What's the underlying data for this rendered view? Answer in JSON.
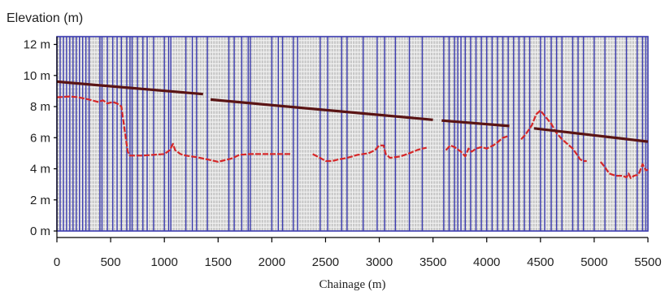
{
  "chart_data": {
    "type": "line",
    "title": "",
    "ylabel": "Elevation (m)",
    "xlabel": "Chainage (m)",
    "xlim": [
      0,
      5500
    ],
    "ylim": [
      0,
      12.5
    ],
    "x_ticks": [
      0,
      500,
      1000,
      1500,
      2000,
      2500,
      3000,
      3500,
      4000,
      4500,
      5000,
      5500
    ],
    "x_tick_labels": [
      "0",
      "500",
      "1000",
      "1500",
      "2000",
      "2500",
      "3000",
      "3500",
      "4000",
      "4500",
      "5000",
      "5500"
    ],
    "y_ticks": [
      0,
      2,
      4,
      6,
      8,
      10,
      12
    ],
    "y_tick_labels": [
      "0 m",
      "2 m",
      "4 m",
      "6 m",
      "8 m",
      "10 m",
      "12 m"
    ],
    "grid": true,
    "colors": {
      "plot_background": "#c8c8c8",
      "minor_grid": "#f2f2f2",
      "major_grid": "#3b3bb0",
      "series_red": "#d62728",
      "series_brown": "#5a1414",
      "axis": "#000000"
    },
    "vertical_grid_x": [
      30,
      60,
      90,
      120,
      150,
      180,
      210,
      240,
      270,
      300,
      400,
      420,
      470,
      520,
      560,
      600,
      650,
      680,
      700,
      750,
      800,
      840,
      900,
      1000,
      1040,
      1060,
      1200,
      1260,
      1300,
      1400,
      1600,
      1650,
      1720,
      1780,
      1800,
      2000,
      2060,
      2100,
      2200,
      2240,
      2450,
      2520,
      2650,
      2700,
      2850,
      2980,
      3050,
      3150,
      3280,
      3400,
      3600,
      3650,
      3700,
      3730,
      3760,
      3800,
      3850,
      3900,
      3950,
      4000,
      4050,
      4100,
      4150,
      4200,
      4250,
      4300,
      4350,
      4400,
      4500,
      4540,
      4600,
      4650,
      4700,
      4800,
      4850,
      4900,
      5000,
      5100,
      5200,
      5300,
      5400,
      5450,
      5480
    ],
    "series": [
      {
        "kind": "ground",
        "color": "#d62728",
        "segments": [
          [
            [
              0,
              8.6
            ],
            [
              120,
              8.65
            ],
            [
              200,
              8.6
            ],
            [
              300,
              8.45
            ],
            [
              380,
              8.3
            ],
            [
              430,
              8.4
            ],
            [
              470,
              8.2
            ],
            [
              520,
              8.3
            ],
            [
              560,
              8.2
            ],
            [
              600,
              8.0
            ],
            [
              620,
              7.0
            ],
            [
              640,
              6.0
            ],
            [
              660,
              5.1
            ],
            [
              680,
              4.85
            ],
            [
              800,
              4.85
            ],
            [
              900,
              4.9
            ],
            [
              1000,
              4.95
            ],
            [
              1050,
              5.2
            ],
            [
              1080,
              5.6
            ],
            [
              1100,
              5.2
            ],
            [
              1150,
              4.95
            ],
            [
              1200,
              4.85
            ],
            [
              1300,
              4.75
            ],
            [
              1400,
              4.6
            ],
            [
              1500,
              4.45
            ],
            [
              1560,
              4.55
            ],
            [
              1620,
              4.65
            ],
            [
              1700,
              4.9
            ],
            [
              1800,
              4.95
            ],
            [
              1900,
              4.95
            ],
            [
              2000,
              4.95
            ],
            [
              2100,
              4.95
            ],
            [
              2180,
              4.95
            ]
          ],
          [
            [
              2380,
              4.95
            ],
            [
              2450,
              4.7
            ],
            [
              2500,
              4.5
            ],
            [
              2560,
              4.5
            ],
            [
              2620,
              4.6
            ],
            [
              2700,
              4.7
            ],
            [
              2800,
              4.9
            ],
            [
              2900,
              5.0
            ],
            [
              2960,
              5.2
            ],
            [
              3000,
              5.5
            ],
            [
              3040,
              5.5
            ],
            [
              3060,
              4.95
            ],
            [
              3100,
              4.7
            ],
            [
              3200,
              4.8
            ],
            [
              3280,
              5.0
            ],
            [
              3350,
              5.2
            ],
            [
              3400,
              5.3
            ],
            [
              3440,
              5.35
            ]
          ],
          [
            [
              3620,
              5.2
            ],
            [
              3660,
              5.5
            ],
            [
              3700,
              5.4
            ],
            [
              3760,
              5.1
            ],
            [
              3800,
              4.8
            ],
            [
              3830,
              5.3
            ],
            [
              3860,
              5.1
            ],
            [
              3900,
              5.3
            ],
            [
              3950,
              5.4
            ],
            [
              4000,
              5.3
            ],
            [
              4060,
              5.5
            ],
            [
              4100,
              5.7
            ],
            [
              4150,
              6.0
            ],
            [
              4200,
              6.1
            ]
          ],
          [
            [
              4320,
              5.9
            ],
            [
              4360,
              6.2
            ],
            [
              4420,
              6.8
            ],
            [
              4460,
              7.5
            ],
            [
              4500,
              7.75
            ],
            [
              4540,
              7.4
            ],
            [
              4600,
              6.9
            ],
            [
              4650,
              6.3
            ],
            [
              4700,
              5.9
            ],
            [
              4750,
              5.6
            ],
            [
              4800,
              5.3
            ],
            [
              4840,
              4.9
            ],
            [
              4870,
              4.6
            ],
            [
              4900,
              4.5
            ],
            [
              4930,
              4.5
            ]
          ],
          [
            [
              5060,
              4.45
            ],
            [
              5100,
              4.1
            ],
            [
              5140,
              3.7
            ],
            [
              5200,
              3.55
            ],
            [
              5260,
              3.55
            ],
            [
              5300,
              3.45
            ],
            [
              5320,
              3.7
            ],
            [
              5340,
              3.4
            ],
            [
              5370,
              3.55
            ],
            [
              5400,
              3.6
            ],
            [
              5420,
              3.75
            ],
            [
              5450,
              4.3
            ],
            [
              5480,
              3.9
            ],
            [
              5500,
              3.95
            ]
          ]
        ]
      },
      {
        "kind": "top",
        "color": "#5a1414",
        "segments": [
          [
            [
              0,
              9.6
            ],
            [
              1360,
              8.8
            ]
          ],
          [
            [
              1430,
              8.45
            ],
            [
              3500,
              7.15
            ]
          ],
          [
            [
              3580,
              7.1
            ],
            [
              4210,
              6.75
            ]
          ],
          [
            [
              4440,
              6.6
            ],
            [
              5500,
              5.75
            ]
          ]
        ]
      }
    ]
  }
}
